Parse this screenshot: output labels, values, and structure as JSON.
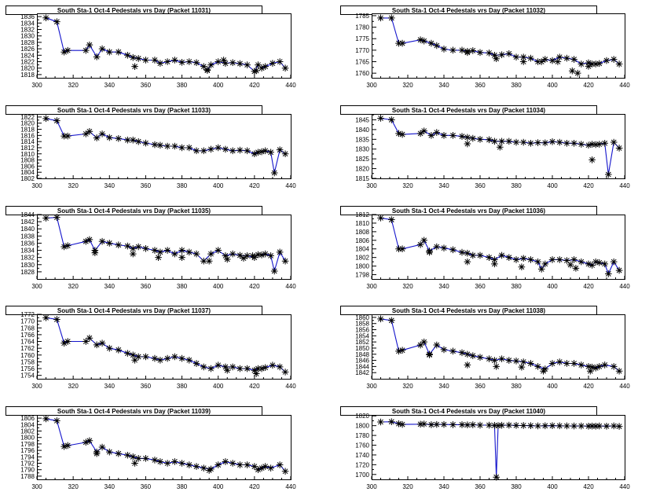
{
  "chart_data": [
    {
      "type": "line",
      "title": "South Sta-1 Oct-4 Pedestals vrs Day (Packet 11031)",
      "xlim": [
        300,
        440
      ],
      "ylim": [
        1817,
        1837
      ],
      "xticks": [
        300,
        320,
        340,
        360,
        380,
        400,
        420,
        440
      ],
      "yticks": [
        1818,
        1820,
        1822,
        1824,
        1826,
        1828,
        1830,
        1832,
        1834,
        1836
      ],
      "x": [
        305,
        311,
        315,
        317,
        327,
        329,
        333,
        336,
        340,
        345,
        350,
        353,
        356,
        360,
        365,
        368,
        372,
        376,
        380,
        384,
        388,
        392,
        394,
        396,
        400,
        404,
        408,
        412,
        416,
        420,
        422,
        424,
        426,
        430,
        434,
        437
      ],
      "y": [
        1835.6,
        1834.4,
        1825,
        1825.5,
        1825.5,
        1827.2,
        1823.5,
        1826,
        1825,
        1825,
        1824,
        1823.3,
        1823,
        1822.5,
        1822.5,
        1821.5,
        1822,
        1822.5,
        1821.8,
        1822,
        1821.7,
        1820.5,
        1819.5,
        1821,
        1822,
        1821.5,
        1821.7,
        1821.4,
        1821,
        1819,
        1821,
        1820,
        1820.5,
        1821.5,
        1822,
        1820
      ],
      "outliers": [
        [
          354,
          1820.5
        ],
        [
          394,
          1819.3
        ],
        [
          403,
          1822.5
        ],
        [
          421,
          1819.2
        ]
      ]
    },
    {
      "type": "line",
      "title": "South Sta-1 Oct-4 Pedestals vrs Day (Packet 11032)",
      "xlim": [
        300,
        440
      ],
      "ylim": [
        1758,
        1786
      ],
      "xticks": [
        300,
        320,
        340,
        360,
        380,
        400,
        420,
        440
      ],
      "yticks": [
        1760,
        1765,
        1770,
        1775,
        1780,
        1785
      ],
      "x": [
        305,
        311,
        315,
        317,
        327,
        329,
        333,
        336,
        340,
        345,
        350,
        353,
        356,
        360,
        365,
        368,
        372,
        376,
        380,
        384,
        388,
        392,
        394,
        396,
        400,
        404,
        408,
        412,
        416,
        420,
        422,
        424,
        426,
        430,
        434,
        437
      ],
      "y": [
        1784,
        1784,
        1773,
        1773,
        1774.5,
        1774,
        1773,
        1772,
        1770.5,
        1770,
        1770,
        1769.5,
        1769.8,
        1769,
        1768.8,
        1767.8,
        1768,
        1768.5,
        1767,
        1767,
        1766.5,
        1765,
        1765,
        1766,
        1765.5,
        1767,
        1766.5,
        1766,
        1764,
        1764.5,
        1764,
        1764,
        1764.2,
        1765.5,
        1766,
        1764
      ],
      "outliers": [
        [
          353,
          1769
        ],
        [
          369,
          1766.3
        ],
        [
          384,
          1765
        ],
        [
          403,
          1765
        ],
        [
          411,
          1761
        ],
        [
          414,
          1760
        ],
        [
          420,
          1763
        ]
      ]
    },
    {
      "type": "line",
      "title": "South Sta-1 Oct-4 Pedestals vrs Day (Packet 11033)",
      "xlim": [
        300,
        440
      ],
      "ylim": [
        1802,
        1823
      ],
      "xticks": [
        300,
        320,
        340,
        360,
        380,
        400,
        420,
        440
      ],
      "yticks": [
        1802,
        1804,
        1806,
        1808,
        1810,
        1812,
        1814,
        1816,
        1818,
        1820,
        1822
      ],
      "x": [
        305,
        311,
        315,
        317,
        327,
        329,
        333,
        336,
        340,
        345,
        350,
        353,
        356,
        360,
        365,
        368,
        372,
        376,
        380,
        384,
        388,
        392,
        396,
        400,
        404,
        408,
        412,
        416,
        420,
        422,
        424,
        426,
        429,
        431,
        434,
        437
      ],
      "y": [
        1821.5,
        1820.8,
        1815.8,
        1815.8,
        1816.5,
        1817.3,
        1815.2,
        1816.5,
        1815.3,
        1815,
        1814.5,
        1814.5,
        1814,
        1813.5,
        1813,
        1812.8,
        1812.5,
        1812.5,
        1812,
        1812,
        1811,
        1811,
        1811.5,
        1812,
        1811.5,
        1811,
        1811.2,
        1811,
        1810,
        1810.5,
        1810.7,
        1811,
        1810.5,
        1803.8,
        1811.3,
        1810
      ]
    },
    {
      "type": "line",
      "title": "South Sta-1 Oct-4 Pedestals vrs Day (Packet 11034)",
      "xlim": [
        300,
        440
      ],
      "ylim": [
        1815,
        1848
      ],
      "xticks": [
        300,
        320,
        340,
        360,
        380,
        400,
        420,
        440
      ],
      "yticks": [
        1815,
        1820,
        1825,
        1830,
        1835,
        1840,
        1845
      ],
      "x": [
        305,
        311,
        315,
        317,
        327,
        329,
        333,
        336,
        340,
        345,
        350,
        353,
        356,
        360,
        365,
        368,
        372,
        376,
        380,
        384,
        388,
        392,
        396,
        400,
        404,
        408,
        412,
        416,
        420,
        422,
        424,
        426,
        429,
        431,
        434,
        437
      ],
      "y": [
        1845.8,
        1845,
        1838,
        1837.5,
        1838,
        1839.3,
        1837,
        1838.5,
        1837,
        1837,
        1836.5,
        1836,
        1835.5,
        1835,
        1834.8,
        1834,
        1834,
        1834,
        1833.5,
        1833.5,
        1833,
        1833.3,
        1833.2,
        1833.8,
        1833.5,
        1833,
        1833,
        1832.5,
        1832,
        1832.5,
        1832.3,
        1832.5,
        1833,
        1817,
        1833.5,
        1830.5
      ],
      "outliers": [
        [
          422,
          1824.5
        ],
        [
          371,
          1831
        ],
        [
          353,
          1832.7
        ]
      ]
    },
    {
      "type": "line",
      "title": "South Sta-1 Oct-4 Pedestals vrs Day (Packet 11035)",
      "xlim": [
        300,
        440
      ],
      "ylim": [
        1826,
        1844
      ],
      "xticks": [
        300,
        320,
        340,
        360,
        380,
        400,
        420,
        440
      ],
      "yticks": [
        1828,
        1830,
        1832,
        1834,
        1836,
        1838,
        1840,
        1842,
        1844
      ],
      "x": [
        305,
        311,
        315,
        317,
        327,
        329,
        332,
        336,
        340,
        345,
        350,
        353,
        356,
        360,
        365,
        368,
        372,
        376,
        380,
        384,
        388,
        392,
        396,
        400,
        404,
        408,
        412,
        416,
        420,
        422,
        424,
        426,
        429,
        431,
        434,
        437
      ],
      "y": [
        1843,
        1843.2,
        1835,
        1835.3,
        1836.5,
        1837,
        1834,
        1836.5,
        1836,
        1835.5,
        1835.2,
        1834.5,
        1835,
        1834.5,
        1834,
        1833.5,
        1834,
        1833,
        1834,
        1833.5,
        1833,
        1831,
        1833,
        1834,
        1832.5,
        1833,
        1832.6,
        1832.5,
        1832,
        1832.8,
        1832.7,
        1833,
        1832.5,
        1828.2,
        1833.5,
        1831
      ],
      "outliers": [
        [
          332,
          1833.3
        ],
        [
          353,
          1833
        ],
        [
          367,
          1832
        ],
        [
          380,
          1832
        ],
        [
          395,
          1831
        ],
        [
          405,
          1831.5
        ],
        [
          414,
          1831.8
        ],
        [
          419,
          1832.5
        ]
      ]
    },
    {
      "type": "line",
      "title": "South Sta-1 Oct-4 Pedestals vrs Day (Packet 11036)",
      "xlim": [
        300,
        440
      ],
      "ylim": [
        1797,
        1812
      ],
      "xticks": [
        300,
        320,
        340,
        360,
        380,
        400,
        420,
        440
      ],
      "yticks": [
        1798,
        1800,
        1802,
        1804,
        1806,
        1808,
        1810,
        1812
      ],
      "x": [
        305,
        311,
        315,
        317,
        327,
        329,
        332,
        336,
        340,
        345,
        350,
        353,
        356,
        360,
        365,
        368,
        372,
        376,
        380,
        384,
        388,
        392,
        394,
        396,
        400,
        404,
        408,
        412,
        416,
        420,
        422,
        424,
        426,
        429,
        431,
        434,
        437
      ],
      "y": [
        1811.2,
        1810.8,
        1804,
        1804,
        1805,
        1806,
        1803.5,
        1804.5,
        1804.2,
        1803.8,
        1803.2,
        1803,
        1802.5,
        1802.5,
        1802,
        1801.5,
        1802.5,
        1802,
        1801.5,
        1801.8,
        1801.5,
        1801,
        1799.3,
        1800.5,
        1801.5,
        1801.5,
        1801.3,
        1801.5,
        1801,
        1800.5,
        1800.2,
        1801,
        1800.8,
        1800.5,
        1798.2,
        1801,
        1799
      ],
      "outliers": [
        [
          332,
          1803.2
        ],
        [
          353,
          1801
        ],
        [
          368,
          1800.5
        ],
        [
          383,
          1799.8
        ],
        [
          410,
          1800.3
        ],
        [
          413,
          1799.5
        ]
      ]
    },
    {
      "type": "line",
      "title": "South Sta-1 Oct-4 Pedestals vrs Day (Packet 11037)",
      "xlim": [
        300,
        440
      ],
      "ylim": [
        1753,
        1772
      ],
      "xticks": [
        300,
        320,
        340,
        360,
        380,
        400,
        420,
        440
      ],
      "yticks": [
        1754,
        1756,
        1758,
        1760,
        1762,
        1764,
        1766,
        1768,
        1770,
        1772
      ],
      "x": [
        305,
        311,
        315,
        317,
        327,
        329,
        333,
        336,
        340,
        345,
        350,
        353,
        356,
        360,
        365,
        368,
        372,
        376,
        380,
        384,
        388,
        392,
        396,
        400,
        404,
        408,
        412,
        416,
        420,
        422,
        424,
        426,
        430,
        434,
        437
      ],
      "y": [
        1771,
        1770.5,
        1763.5,
        1764,
        1764,
        1765,
        1763,
        1763.5,
        1762,
        1761.5,
        1760.5,
        1760,
        1759.5,
        1759.5,
        1759,
        1758.5,
        1759,
        1759.5,
        1759,
        1758.5,
        1757.5,
        1756.5,
        1756,
        1757,
        1756.5,
        1756.5,
        1756,
        1756,
        1755.5,
        1756,
        1756,
        1756.3,
        1757,
        1756.5,
        1755
      ],
      "outliers": [
        [
          354,
          1758.5
        ],
        [
          405,
          1755.5
        ],
        [
          421,
          1754.5
        ]
      ]
    },
    {
      "type": "line",
      "title": "South Sta-1 Oct-4 Pedestals vrs Day (Packet 11038)",
      "xlim": [
        300,
        440
      ],
      "ylim": [
        1840,
        1861
      ],
      "xticks": [
        300,
        320,
        340,
        360,
        380,
        400,
        420,
        440
      ],
      "yticks": [
        1842,
        1844,
        1846,
        1848,
        1850,
        1852,
        1854,
        1856,
        1858,
        1860
      ],
      "x": [
        305,
        311,
        315,
        317,
        327,
        329,
        332,
        336,
        340,
        345,
        350,
        353,
        356,
        360,
        365,
        368,
        372,
        376,
        380,
        384,
        388,
        392,
        396,
        400,
        404,
        408,
        412,
        416,
        420,
        422,
        424,
        426,
        429,
        434,
        437
      ],
      "y": [
        1859.5,
        1859,
        1849,
        1849.3,
        1851,
        1852,
        1848,
        1851,
        1849.5,
        1849,
        1848.5,
        1848,
        1847.5,
        1847,
        1846.5,
        1846,
        1846.5,
        1846,
        1845.8,
        1845.5,
        1845,
        1844,
        1843.2,
        1845,
        1845.5,
        1845,
        1845,
        1844.5,
        1844,
        1843.8,
        1843.5,
        1844,
        1844.5,
        1844,
        1842.5
      ],
      "outliers": [
        [
          332,
          1847.8
        ],
        [
          353,
          1844.5
        ],
        [
          369,
          1844
        ],
        [
          383,
          1843.8
        ],
        [
          395,
          1842.5
        ],
        [
          421,
          1842.5
        ]
      ]
    },
    {
      "type": "line",
      "title": "South Sta-1 Oct-4 Pedestals vrs Day (Packet 11039)",
      "xlim": [
        300,
        440
      ],
      "ylim": [
        1787,
        1807
      ],
      "xticks": [
        300,
        320,
        340,
        360,
        380,
        400,
        420,
        440
      ],
      "yticks": [
        1788,
        1790,
        1792,
        1794,
        1796,
        1798,
        1800,
        1802,
        1804,
        1806
      ],
      "x": [
        305,
        311,
        315,
        317,
        327,
        329,
        333,
        336,
        340,
        345,
        350,
        353,
        356,
        360,
        365,
        368,
        372,
        376,
        380,
        384,
        388,
        392,
        396,
        400,
        404,
        408,
        412,
        416,
        420,
        422,
        424,
        426,
        429,
        434,
        437
      ],
      "y": [
        1805.8,
        1805.2,
        1797.2,
        1797.5,
        1798.5,
        1799,
        1795.5,
        1797,
        1795.5,
        1795,
        1794.5,
        1794,
        1793.5,
        1793.5,
        1793,
        1792.5,
        1792,
        1792.5,
        1792,
        1791.5,
        1791,
        1790.5,
        1790.2,
        1791.5,
        1792.5,
        1792,
        1791.5,
        1791.5,
        1791,
        1790,
        1790.5,
        1791,
        1790.5,
        1791.5,
        1789.5
      ],
      "outliers": [
        [
          333,
          1795
        ],
        [
          354,
          1792
        ],
        [
          395,
          1789.8
        ]
      ]
    },
    {
      "type": "line",
      "title": "South Sta-1 Oct-4 Pedestals vrs Day (Packet 11040)",
      "xlim": [
        300,
        440
      ],
      "ylim": [
        1690,
        1822
      ],
      "xticks": [
        300,
        320,
        340,
        360,
        380,
        400,
        420,
        440
      ],
      "yticks": [
        1700,
        1720,
        1740,
        1760,
        1780,
        1800,
        1820
      ],
      "x": [
        305,
        311,
        315,
        317,
        327,
        329,
        333,
        336,
        340,
        345,
        350,
        353,
        356,
        360,
        365,
        368,
        369,
        370,
        372,
        376,
        380,
        384,
        388,
        392,
        396,
        400,
        404,
        408,
        412,
        416,
        420,
        422,
        424,
        426,
        430,
        434,
        437
      ],
      "y": [
        1807.5,
        1808,
        1804,
        1802.5,
        1803,
        1803.5,
        1802,
        1802.5,
        1802.5,
        1802,
        1802,
        1801.5,
        1801.8,
        1801,
        1801,
        1800.5,
        1694.5,
        1800,
        1800.8,
        1801,
        1800.5,
        1800.3,
        1800,
        1799.5,
        1799.8,
        1800,
        1799.7,
        1799.5,
        1799.3,
        1799.4,
        1799,
        1799.2,
        1799,
        1799.3,
        1799,
        1799.5,
        1798.5
      ]
    }
  ]
}
